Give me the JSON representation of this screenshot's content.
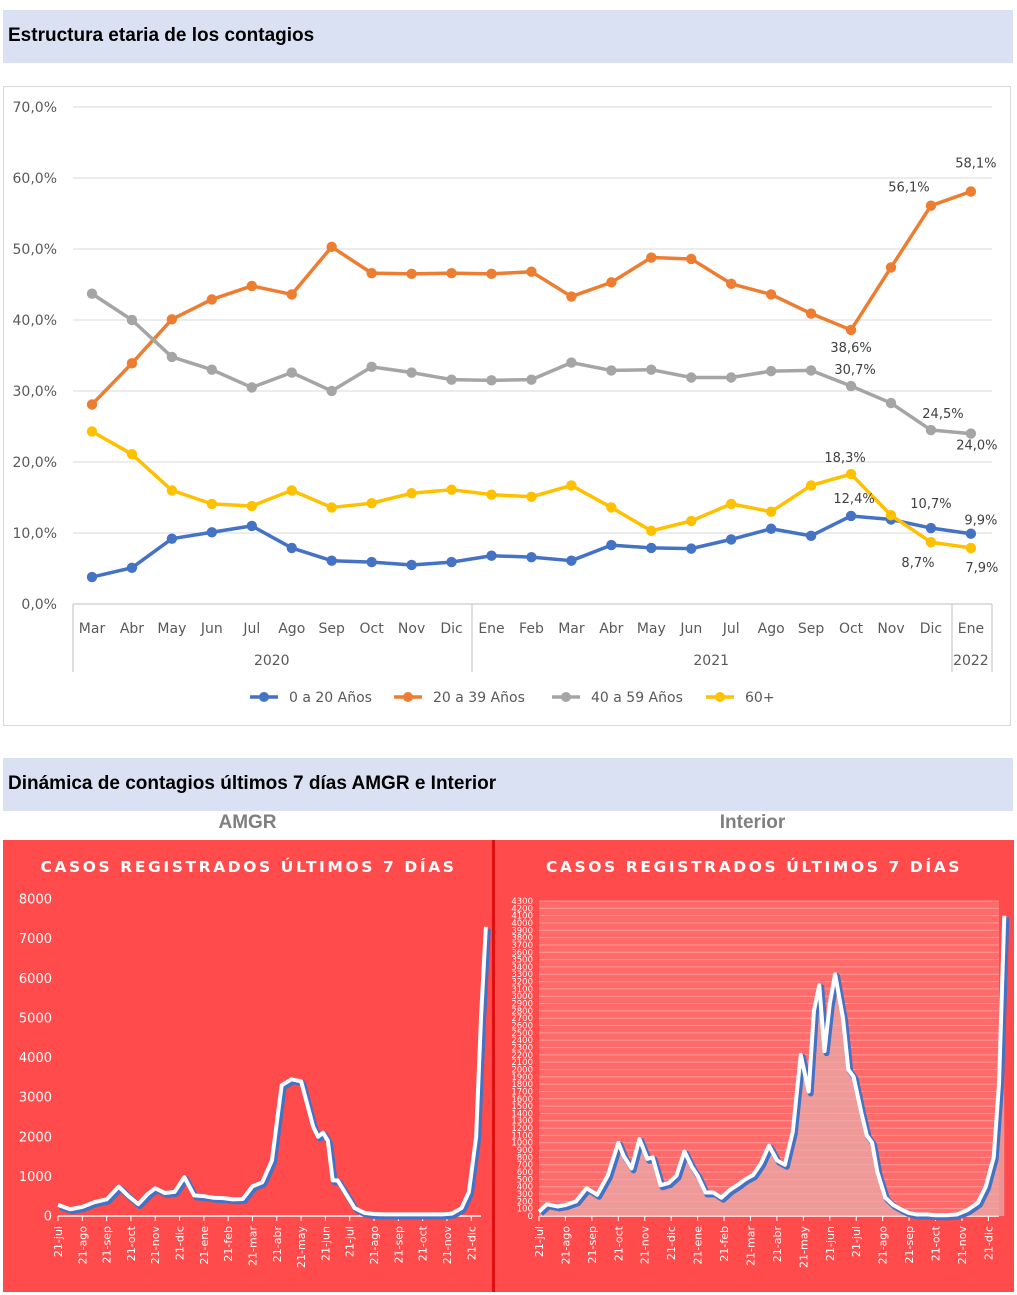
{
  "headers": {
    "age_structure": "Estructura etaria de los contagios",
    "dynamics": "Dinámica de contagios  últimos 7 días AMGR e Interior"
  },
  "panels": {
    "left_title": "AMGR",
    "right_title": "Interior"
  },
  "colors": {
    "blue": "#4472c4",
    "orange": "#ed7d31",
    "gray": "#a5a5a5",
    "yellow": "#ffc000",
    "panel_red": "#ff4b4b",
    "panel_header_bg": "#d9e1f2"
  },
  "chart_data": [
    {
      "type": "line",
      "categories": [
        "Mar",
        "Abr",
        "May",
        "Jun",
        "Jul",
        "Ago",
        "Sep",
        "Oct",
        "Nov",
        "Dic",
        "Ene",
        "Feb",
        "Mar",
        "Abr",
        "May",
        "Jun",
        "Jul",
        "Ago",
        "Sep",
        "Oct",
        "Nov",
        "Dic",
        "Ene"
      ],
      "category_groups": [
        {
          "label": "2020",
          "count": 10
        },
        {
          "label": "2021",
          "count": 12
        },
        {
          "label": "2022",
          "count": 1
        }
      ],
      "ylim": [
        0,
        70
      ],
      "yticks": [
        0,
        10,
        20,
        30,
        40,
        50,
        60,
        70
      ],
      "ytick_labels": [
        "0,0%",
        "10,0%",
        "20,0%",
        "30,0%",
        "40,0%",
        "50,0%",
        "60,0%",
        "70,0%"
      ],
      "grid": true,
      "legend": "bottom",
      "series": [
        {
          "name": "0 a 20 Años",
          "color": "#4472c4",
          "values": [
            3.8,
            5.1,
            9.2,
            10.1,
            11.0,
            7.9,
            6.1,
            5.9,
            5.5,
            5.9,
            6.8,
            6.6,
            6.1,
            8.3,
            7.9,
            7.8,
            9.1,
            10.6,
            9.6,
            12.4,
            11.9,
            10.7,
            9.9
          ]
        },
        {
          "name": "20 a 39 Años",
          "color": "#ed7d31",
          "values": [
            28.1,
            33.9,
            40.1,
            42.9,
            44.8,
            43.6,
            50.3,
            46.6,
            46.5,
            46.6,
            46.5,
            46.8,
            43.3,
            45.3,
            48.8,
            48.6,
            45.1,
            43.6,
            40.9,
            38.6,
            47.4,
            56.1,
            58.1
          ]
        },
        {
          "name": "40 a 59 Años",
          "color": "#a5a5a5",
          "values": [
            43.7,
            40.0,
            34.8,
            33.0,
            30.5,
            32.6,
            30.0,
            33.4,
            32.6,
            31.6,
            31.5,
            31.6,
            34.0,
            32.9,
            33.0,
            31.9,
            31.9,
            32.8,
            32.9,
            30.7,
            28.3,
            24.5,
            24.0
          ]
        },
        {
          "name": "60+",
          "color": "#ffc000",
          "values": [
            24.3,
            21.1,
            16.0,
            14.1,
            13.8,
            16.0,
            13.6,
            14.2,
            15.6,
            16.1,
            15.4,
            15.1,
            16.7,
            13.6,
            10.3,
            11.7,
            14.1,
            13.0,
            16.7,
            18.3,
            12.5,
            8.7,
            7.9
          ]
        }
      ],
      "data_labels": [
        {
          "series": "20 a 39 Años",
          "index": 19,
          "text": "38,6%"
        },
        {
          "series": "20 a 39 Años",
          "index": 21,
          "text": "56,1%"
        },
        {
          "series": "20 a 39 Años",
          "index": 22,
          "text": "58,1%"
        },
        {
          "series": "40 a 59 Años",
          "index": 19,
          "text": "30,7%"
        },
        {
          "series": "40 a 59 Años",
          "index": 21,
          "text": "24,5%"
        },
        {
          "series": "40 a 59 Años",
          "index": 22,
          "text": "24,0%"
        },
        {
          "series": "0 a 20 Años",
          "index": 19,
          "text": "12,4%"
        },
        {
          "series": "0 a 20 Años",
          "index": 21,
          "text": "10,7%"
        },
        {
          "series": "0 a 20 Años",
          "index": 22,
          "text": "9,9%"
        },
        {
          "series": "60+",
          "index": 19,
          "text": "18,3%"
        },
        {
          "series": "60+",
          "index": 21,
          "text": "8,7%"
        },
        {
          "series": "60+",
          "index": 22,
          "text": "7,9%"
        }
      ]
    },
    {
      "type": "line",
      "title": "CASOS REGISTRADOS ÚLTIMOS 7 DÍAS",
      "x_months": [
        "21-jul",
        "21-ago",
        "21-sep",
        "21-oct",
        "21-nov",
        "21-dic",
        "21-ene",
        "21-feb",
        "21-mar",
        "21-abr",
        "21-may",
        "21-jun",
        "21-jul",
        "21-ago",
        "21-sep",
        "21-oct",
        "21-nov",
        "21-dic"
      ],
      "ylim": [
        0,
        8000
      ],
      "yticks": [
        0,
        1000,
        2000,
        3000,
        4000,
        5000,
        6000,
        7000,
        8000
      ],
      "grid": false,
      "x": [
        0,
        0.5,
        1,
        1.5,
        2,
        2.5,
        2.9,
        3.3,
        3.7,
        4,
        4.4,
        4.8,
        5.2,
        5.6,
        6,
        6.4,
        6.8,
        7.2,
        7.6,
        8,
        8.4,
        8.8,
        9.2,
        9.6,
        10,
        10.5,
        10.7,
        10.9,
        11.1,
        11.3,
        11.5,
        11.7,
        11.9,
        12.2,
        12.6,
        13,
        13.4,
        13.8,
        14.2,
        14.6,
        15,
        15.4,
        15.8,
        16.2,
        16.6,
        16.9,
        17.2,
        17.4,
        17.6
      ],
      "values": [
        280,
        170,
        230,
        350,
        420,
        740,
        500,
        300,
        560,
        700,
        580,
        610,
        980,
        520,
        500,
        460,
        450,
        420,
        430,
        750,
        850,
        1400,
        3300,
        3450,
        3400,
        2250,
        2000,
        2100,
        1900,
        900,
        900,
        700,
        500,
        200,
        80,
        50,
        40,
        40,
        40,
        40,
        40,
        40,
        40,
        60,
        200,
        600,
        2000,
        5000,
        7300
      ]
    },
    {
      "type": "area",
      "title": "CASOS REGISTRADOS ÚLTIMOS 7 DÍAS",
      "x_months": [
        "21-jul",
        "21-ago",
        "21-sep",
        "21-oct",
        "21-nov",
        "21-dic",
        "21-ene",
        "21-feb",
        "21-mar",
        "21-abr",
        "21-may",
        "21-jun",
        "21-jul",
        "21-ago",
        "21-sep",
        "21-oct",
        "21-nov",
        "21-dic"
      ],
      "ylim": [
        0,
        4300
      ],
      "yticks": [
        0,
        100,
        200,
        300,
        400,
        500,
        600,
        700,
        800,
        900,
        1000,
        1100,
        1200,
        1300,
        1400,
        1500,
        1600,
        1700,
        1800,
        1900,
        2000,
        2100,
        2200,
        2300,
        2400,
        2500,
        2600,
        2700,
        2800,
        2900,
        3000,
        3100,
        3200,
        3300,
        3400,
        3500,
        3600,
        3700,
        3800,
        3900,
        4000,
        4100,
        4200,
        4300
      ],
      "grid": true,
      "x": [
        0,
        0.3,
        0.7,
        1,
        1.4,
        1.8,
        2.2,
        2.6,
        3,
        3.2,
        3.5,
        3.8,
        4.1,
        4.3,
        4.6,
        4.9,
        5.2,
        5.5,
        5.8,
        6,
        6.3,
        6.6,
        6.9,
        7.2,
        7.5,
        7.8,
        8.1,
        8.4,
        8.7,
        9,
        9.3,
        9.6,
        9.9,
        10.2,
        10.4,
        10.6,
        10.8,
        11,
        11.2,
        11.5,
        11.7,
        11.9,
        12.2,
        12.4,
        12.6,
        12.8,
        13.1,
        13.4,
        13.7,
        14,
        14.3,
        14.7,
        15,
        15.4,
        15.8,
        16.2,
        16.6,
        16.9,
        17.2,
        17.4,
        17.6
      ],
      "values": [
        60,
        160,
        130,
        150,
        200,
        380,
        290,
        550,
        1000,
        820,
        650,
        1050,
        780,
        800,
        420,
        450,
        550,
        880,
        660,
        550,
        320,
        320,
        250,
        350,
        420,
        500,
        560,
        720,
        960,
        760,
        700,
        1150,
        2200,
        1700,
        2800,
        3150,
        2250,
        2900,
        3300,
        2700,
        2000,
        1900,
        1400,
        1100,
        1000,
        600,
        250,
        150,
        90,
        40,
        20,
        20,
        10,
        10,
        20,
        80,
        180,
        400,
        800,
        1800,
        4100
      ]
    }
  ]
}
